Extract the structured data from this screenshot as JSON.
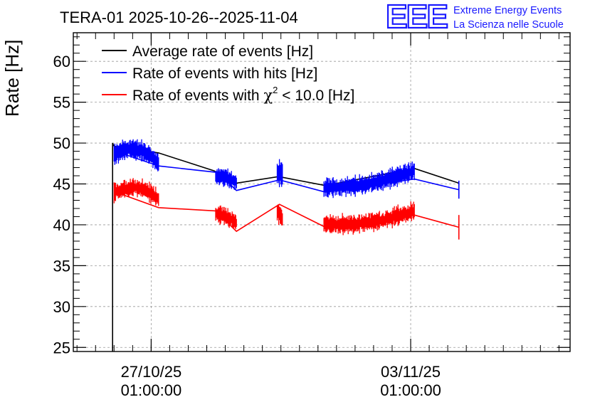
{
  "chart_data": {
    "type": "line",
    "title": "TERA-01 2025-10-26--2025-11-04",
    "logo": {
      "mark": "EEE",
      "line1": "Extreme Energy Events",
      "line2": "La Scienza nelle Scuole"
    },
    "ylabel": "Rate [Hz]",
    "xlabel": "",
    "ylim": [
      24.5,
      63.5
    ],
    "xlim": [
      -1.05,
      5.65
    ],
    "y_ticks": [
      25,
      30,
      35,
      40,
      45,
      50,
      55,
      60
    ],
    "x_ticks": [
      {
        "x": 0,
        "line1": "27/10/25",
        "line2": "01:00:00"
      },
      {
        "x": 3.5,
        "line1": "03/11/25",
        "line2": "01:00:00"
      }
    ],
    "grid": true,
    "legend_position": "top-left",
    "legend": [
      {
        "label": "Average rate of events [Hz]",
        "color": "#000000"
      },
      {
        "label": "Rate of events with hits [Hz]",
        "color": "#0000ff"
      },
      {
        "label_prefix": "Rate of events with ",
        "label_symbol": "χ",
        "label_sup": "2",
        "label_suffix": " < 10.0 [Hz]",
        "color": "#ff0000"
      }
    ],
    "series": [
      {
        "name": "Average rate of events [Hz]",
        "color": "#000000",
        "x": [
          -0.52,
          -0.52,
          -0.5,
          0.1,
          0.85,
          1.15,
          1.72,
          2.35,
          3.55,
          4.15
        ],
        "y": [
          24.5,
          50.0,
          49.6,
          48.8,
          46.6,
          45.1,
          45.9,
          44.8,
          46.9,
          45.1
        ]
      },
      {
        "name": "Rate of events with hits [Hz]",
        "color": "#0000ff",
        "x": [
          -0.48,
          0.1,
          0.9,
          1.15,
          1.73,
          2.35,
          3.55,
          4.15
        ],
        "y": [
          49.0,
          47.2,
          46.4,
          44.2,
          45.5,
          44.0,
          45.6,
          44.3
        ],
        "noise_segments": [
          {
            "x": [
              -0.5,
              0.1
            ],
            "center": [
              48.6,
              47.5
            ],
            "hump": 1.2,
            "amplitude": 1.3
          },
          {
            "x": [
              0.87,
              1.15
            ],
            "center": [
              45.9,
              45.2
            ],
            "hump": 0.2,
            "amplitude": 1.1
          },
          {
            "x": [
              1.7,
              1.77
            ],
            "center": [
              46.4,
              46.2
            ],
            "hump": 0.0,
            "amplitude": 1.6
          },
          {
            "x": [
              2.33,
              3.55
            ],
            "center": [
              44.5,
              46.6
            ],
            "hump": -0.5,
            "amplitude": 1.2
          }
        ],
        "errorbar": {
          "x": 4.15,
          "y": 44.3,
          "err": 1.1
        }
      },
      {
        "name": "Rate of events with χ² < 10.0 [Hz]",
        "color": "#ff0000",
        "x": [
          -0.48,
          0.1,
          0.87,
          1.15,
          1.73,
          2.35,
          3.55,
          4.15
        ],
        "y": [
          44.0,
          42.1,
          41.7,
          39.2,
          42.5,
          39.7,
          41.2,
          39.7
        ],
        "noise_segments": [
          {
            "x": [
              -0.5,
              0.1
            ],
            "center": [
              43.9,
              43.2
            ],
            "hump": 1.0,
            "amplitude": 1.2
          },
          {
            "x": [
              0.87,
              1.15
            ],
            "center": [
              41.4,
              40.2
            ],
            "hump": 0.2,
            "amplitude": 1.1
          },
          {
            "x": [
              1.7,
              1.77
            ],
            "center": [
              41.6,
              40.8
            ],
            "hump": 0.0,
            "amplitude": 1.3
          },
          {
            "x": [
              2.33,
              3.55
            ],
            "center": [
              40.1,
              41.7
            ],
            "hump": -0.6,
            "amplitude": 1.2
          }
        ],
        "errorbar": {
          "x": 4.15,
          "y": 39.7,
          "err": 1.5
        }
      }
    ]
  }
}
